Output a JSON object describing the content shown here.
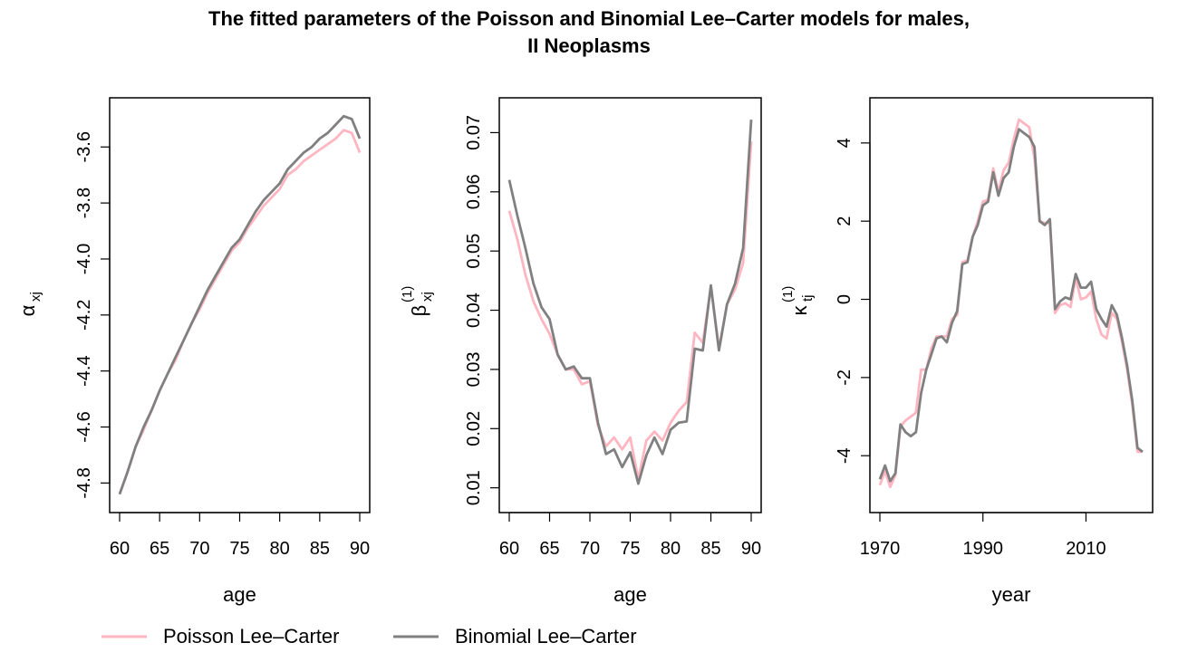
{
  "title_line1": "The fitted parameters of the Poisson and Binomial Lee–Carter models for males,",
  "title_line2": "II Neoplasms",
  "colors": {
    "poisson": "#FFB6C1",
    "binomial": "#808080"
  },
  "legend": [
    "Poisson Lee–Carter",
    "Binomial Lee–Carter"
  ],
  "chart_data": [
    {
      "type": "line",
      "xlabel": "age",
      "ylabel_base": "α",
      "ylabel_sub": "xj",
      "ylabel_sup": "",
      "xlim": [
        60,
        90
      ],
      "ylim": [
        -4.87,
        -3.46
      ],
      "xticks": [
        60,
        65,
        70,
        75,
        80,
        85,
        90
      ],
      "yticks": [
        -4.8,
        -4.6,
        -4.4,
        -4.2,
        -4.0,
        -3.8,
        -3.6
      ],
      "ytick_labels": [
        "-4.8",
        "-4.6",
        "-4.4",
        "-4.2",
        "-4.0",
        "-3.8",
        "-3.6"
      ],
      "x": [
        60,
        61,
        62,
        63,
        64,
        65,
        66,
        67,
        68,
        69,
        70,
        71,
        72,
        73,
        74,
        75,
        76,
        77,
        78,
        79,
        80,
        81,
        82,
        83,
        84,
        85,
        86,
        87,
        88,
        89,
        90
      ],
      "series": [
        {
          "name": "Poisson Lee–Carter",
          "values": [
            -4.84,
            -4.76,
            -4.67,
            -4.61,
            -4.54,
            -4.47,
            -4.41,
            -4.36,
            -4.29,
            -4.23,
            -4.18,
            -4.12,
            -4.07,
            -4.02,
            -3.97,
            -3.94,
            -3.89,
            -3.85,
            -3.81,
            -3.78,
            -3.75,
            -3.7,
            -3.68,
            -3.65,
            -3.63,
            -3.61,
            -3.59,
            -3.57,
            -3.54,
            -3.55,
            -3.62
          ]
        },
        {
          "name": "Binomial Lee–Carter",
          "values": [
            -4.84,
            -4.76,
            -4.67,
            -4.6,
            -4.54,
            -4.47,
            -4.41,
            -4.35,
            -4.29,
            -4.23,
            -4.17,
            -4.11,
            -4.06,
            -4.01,
            -3.96,
            -3.93,
            -3.88,
            -3.83,
            -3.79,
            -3.76,
            -3.73,
            -3.68,
            -3.65,
            -3.62,
            -3.6,
            -3.57,
            -3.55,
            -3.52,
            -3.49,
            -3.5,
            -3.57
          ]
        }
      ]
    },
    {
      "type": "line",
      "xlabel": "age",
      "ylabel_base": "β",
      "ylabel_sub": "xj",
      "ylabel_sup": "(1)",
      "xlim": [
        60,
        90
      ],
      "ylim": [
        0.0075,
        0.0742
      ],
      "xticks": [
        60,
        65,
        70,
        75,
        80,
        85,
        90
      ],
      "yticks": [
        0.01,
        0.02,
        0.03,
        0.04,
        0.05,
        0.06,
        0.07
      ],
      "ytick_labels": [
        "0.01",
        "0.02",
        "0.03",
        "0.04",
        "0.05",
        "0.06",
        "0.07"
      ],
      "x": [
        60,
        61,
        62,
        63,
        64,
        65,
        66,
        67,
        68,
        69,
        70,
        71,
        72,
        73,
        74,
        75,
        76,
        77,
        78,
        79,
        80,
        81,
        82,
        83,
        84,
        85,
        86,
        87,
        88,
        89,
        90
      ],
      "series": [
        {
          "name": "Poisson Lee–Carter",
          "values": [
            0.0568,
            0.052,
            0.046,
            0.0415,
            0.0385,
            0.036,
            0.0325,
            0.03,
            0.03,
            0.0275,
            0.028,
            0.0205,
            0.017,
            0.0185,
            0.0165,
            0.0185,
            0.0115,
            0.018,
            0.0195,
            0.018,
            0.021,
            0.023,
            0.0245,
            0.0362,
            0.0345,
            0.044,
            0.0335,
            0.041,
            0.0435,
            0.048,
            0.0685
          ]
        },
        {
          "name": "Binomial Lee–Carter",
          "values": [
            0.062,
            0.056,
            0.0505,
            0.0445,
            0.0405,
            0.0385,
            0.0325,
            0.03,
            0.0305,
            0.0285,
            0.0285,
            0.021,
            0.0157,
            0.0165,
            0.0135,
            0.016,
            0.0107,
            0.0155,
            0.0185,
            0.0157,
            0.0198,
            0.021,
            0.0212,
            0.0335,
            0.0332,
            0.0442,
            0.0332,
            0.041,
            0.0445,
            0.0505,
            0.0722
          ]
        }
      ]
    },
    {
      "type": "line",
      "xlabel": "year",
      "ylabel_base": "κ",
      "ylabel_sub": "tj",
      "ylabel_sup": "(1)",
      "xlim": [
        1970,
        2021
      ],
      "ylim": [
        -5.2,
        4.9
      ],
      "xticks": [
        1970,
        1990,
        2010
      ],
      "yticks": [
        -4,
        -2,
        0,
        2,
        4
      ],
      "ytick_labels": [
        "-4",
        "-2",
        "0",
        "2",
        "4"
      ],
      "x": [
        1970,
        1971,
        1972,
        1973,
        1974,
        1975,
        1976,
        1977,
        1978,
        1979,
        1980,
        1981,
        1982,
        1983,
        1984,
        1985,
        1986,
        1987,
        1988,
        1989,
        1990,
        1991,
        1992,
        1993,
        1994,
        1995,
        1996,
        1997,
        1998,
        1999,
        2000,
        2001,
        2002,
        2003,
        2004,
        2005,
        2006,
        2007,
        2008,
        2009,
        2010,
        2011,
        2012,
        2013,
        2014,
        2015,
        2016,
        2017,
        2018,
        2019,
        2020,
        2021
      ],
      "series": [
        {
          "name": "Poisson Lee–Carter",
          "values": [
            -4.75,
            -4.4,
            -4.8,
            -4.5,
            -3.25,
            -3.1,
            -3.0,
            -2.9,
            -1.8,
            -1.8,
            -1.25,
            -0.95,
            -0.95,
            -0.95,
            -0.5,
            -0.4,
            0.95,
            1.0,
            1.6,
            2.0,
            2.5,
            2.55,
            3.35,
            2.75,
            3.3,
            3.5,
            4.1,
            4.6,
            4.5,
            4.4,
            3.6,
            2.0,
            1.95,
            1.95,
            -0.35,
            -0.15,
            -0.1,
            -0.2,
            0.55,
            0.0,
            0.05,
            0.2,
            -0.5,
            -0.9,
            -1.0,
            -0.35,
            -0.5,
            -1.1,
            -1.8,
            -2.7,
            -3.9,
            -3.9
          ]
        },
        {
          "name": "Binomial Lee–Carter",
          "values": [
            -4.6,
            -4.25,
            -4.65,
            -4.45,
            -3.2,
            -3.4,
            -3.5,
            -3.4,
            -2.4,
            -1.8,
            -1.4,
            -1.0,
            -0.95,
            -1.1,
            -0.6,
            -0.3,
            0.9,
            0.95,
            1.6,
            1.9,
            2.4,
            2.5,
            3.25,
            2.65,
            3.1,
            3.25,
            3.9,
            4.35,
            4.25,
            4.15,
            3.9,
            2.0,
            1.9,
            2.05,
            -0.25,
            -0.05,
            0.05,
            0.0,
            0.65,
            0.3,
            0.3,
            0.45,
            -0.25,
            -0.5,
            -0.7,
            -0.15,
            -0.4,
            -1.0,
            -1.7,
            -2.6,
            -3.8,
            -3.9
          ]
        }
      ]
    }
  ]
}
